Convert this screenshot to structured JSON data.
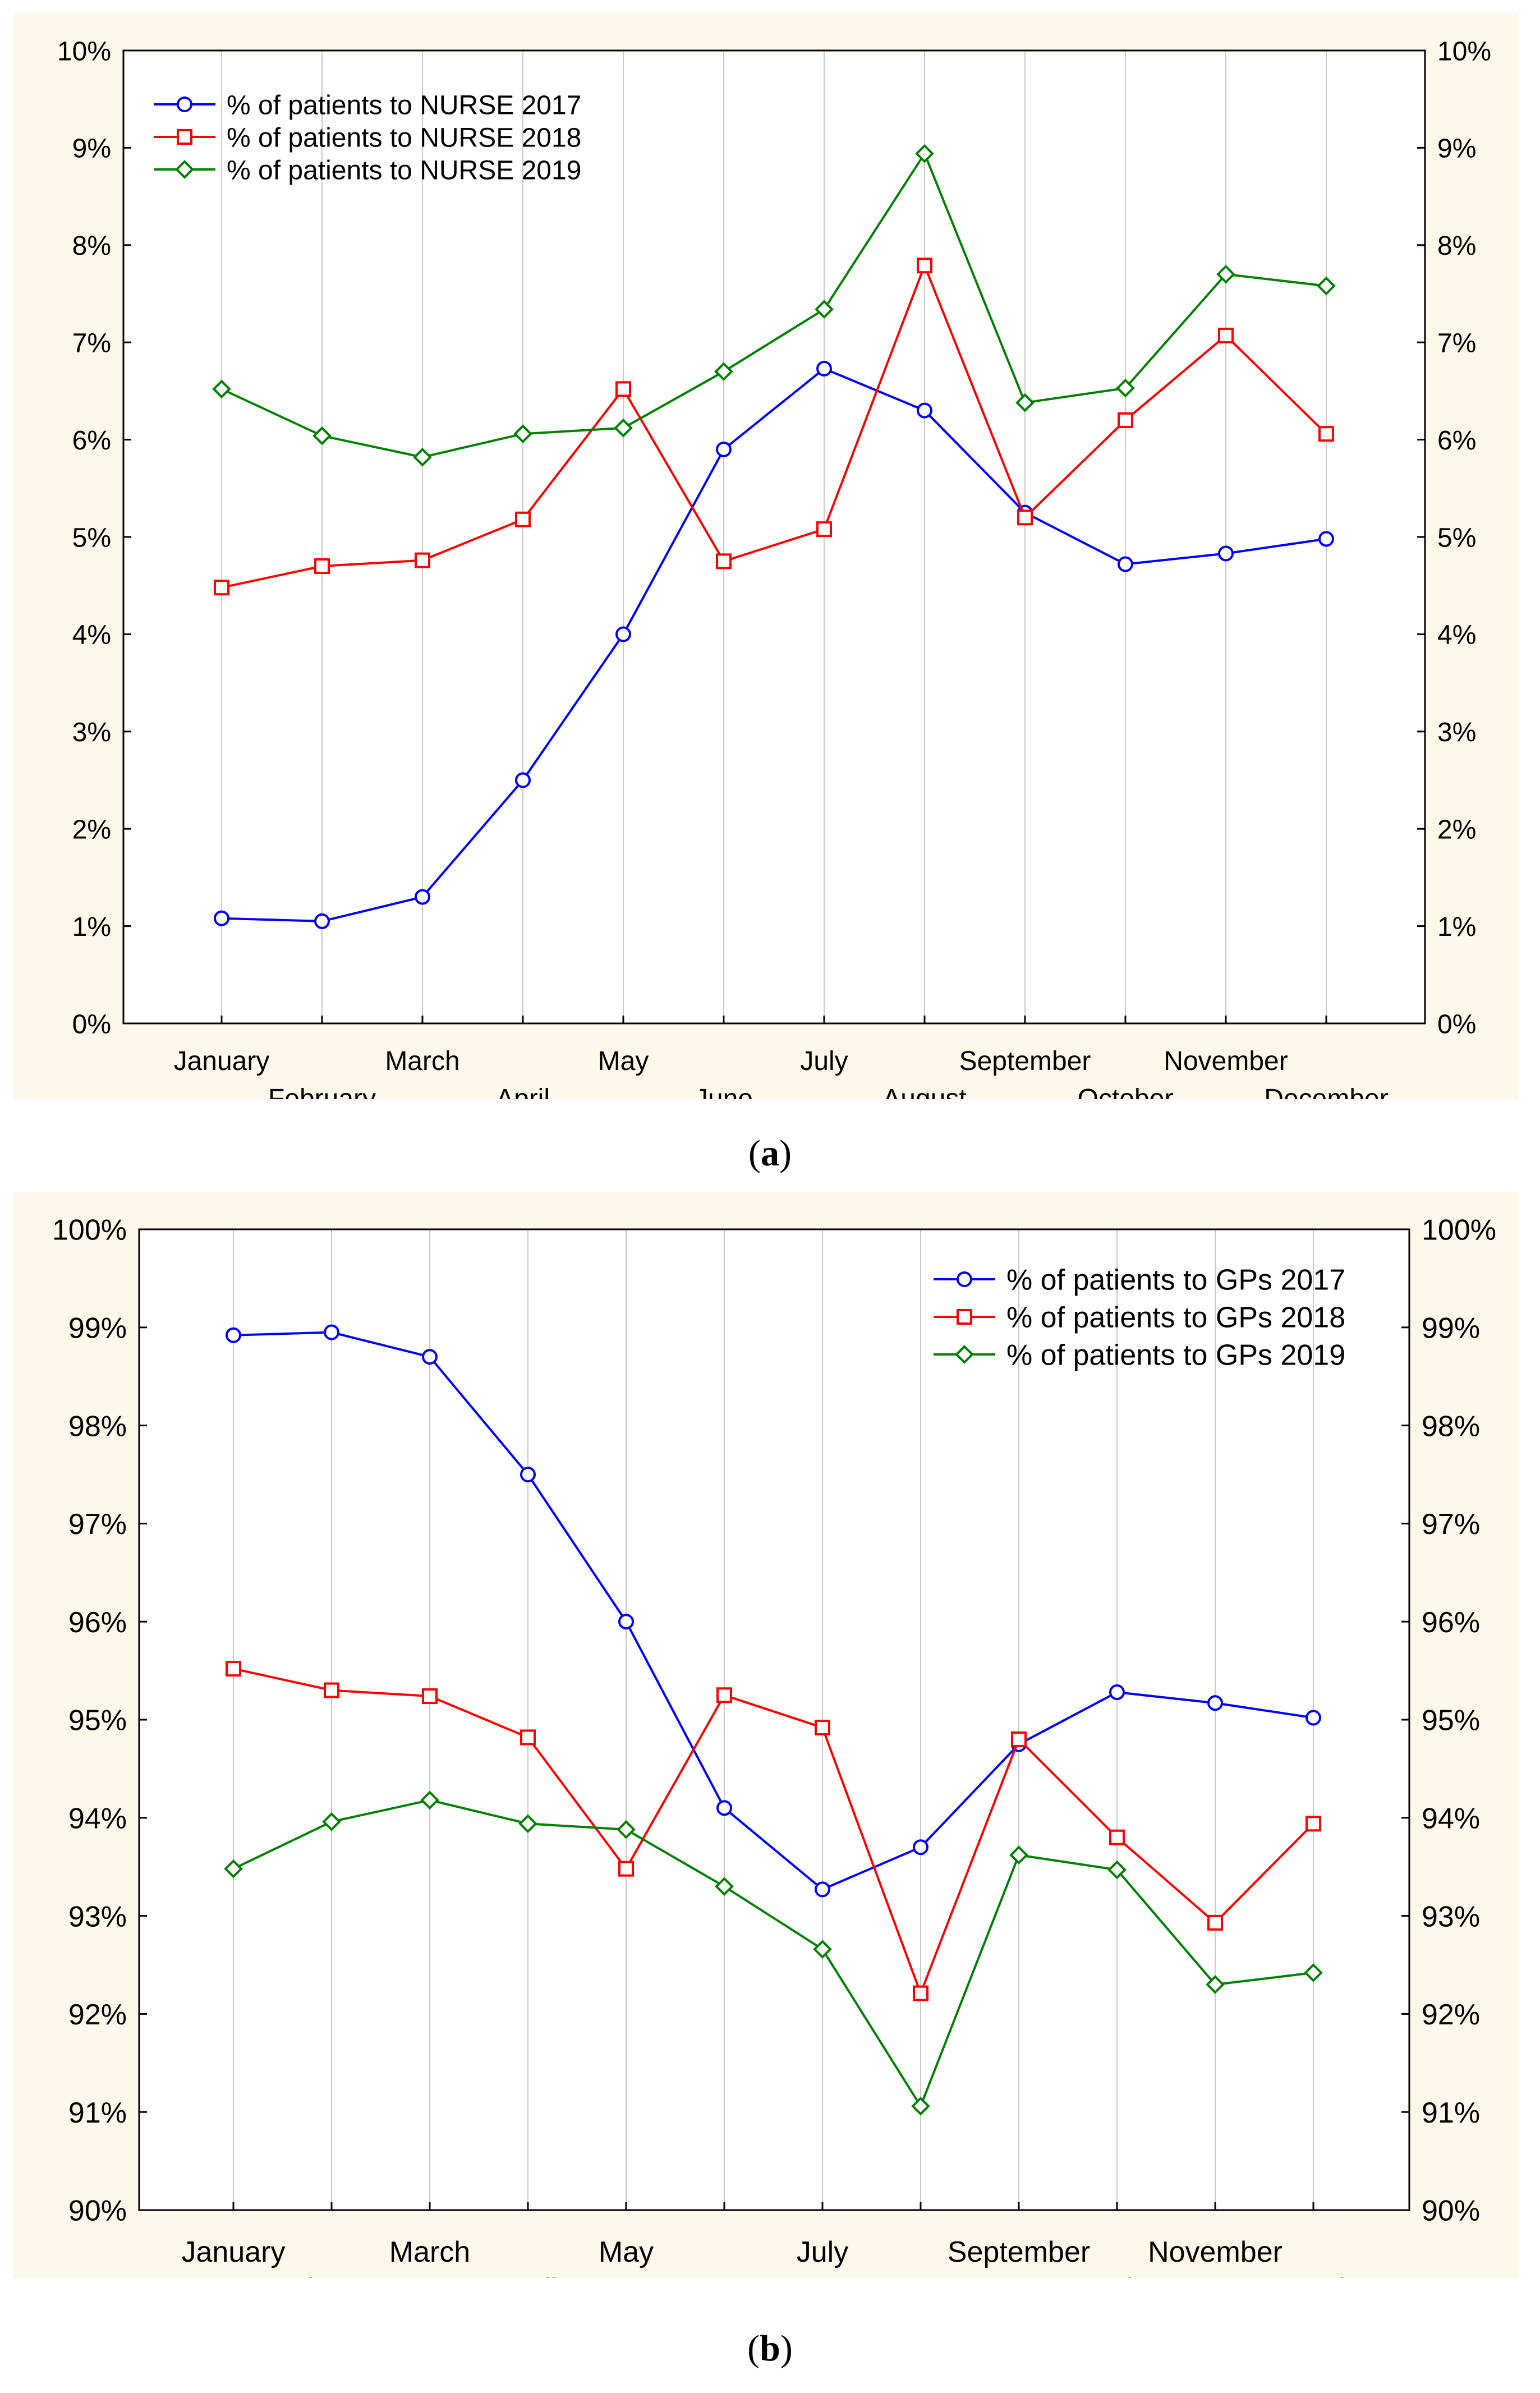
{
  "figure": {
    "panels": [
      {
        "caption_open": "(",
        "caption_letter": "a",
        "caption_close": ")"
      },
      {
        "caption_open": "(",
        "caption_letter": "b",
        "caption_close": ")"
      }
    ]
  },
  "chart_data": [
    {
      "type": "line",
      "title": "",
      "xlabel": "",
      "ylabel": "",
      "categories": [
        "January",
        "February",
        "March",
        "April",
        "May",
        "June",
        "July",
        "August",
        "September",
        "October",
        "November",
        "December"
      ],
      "ylim": [
        0,
        10
      ],
      "yticks": [
        "0%",
        "1%",
        "2%",
        "3%",
        "4%",
        "5%",
        "6%",
        "7%",
        "8%",
        "9%",
        "10%"
      ],
      "grid": true,
      "legend_position": "top-left",
      "series": [
        {
          "name": "% of patients to NURSE 2017",
          "color": "#0000ff",
          "marker": "circle",
          "values": [
            1.08,
            1.05,
            1.3,
            2.5,
            4.0,
            5.9,
            6.73,
            6.3,
            5.25,
            4.72,
            4.83,
            4.98
          ]
        },
        {
          "name": "% of patients to NURSE 2018",
          "color": "#ff0000",
          "marker": "square",
          "values": [
            4.48,
            4.7,
            4.76,
            5.18,
            6.52,
            4.75,
            5.08,
            7.79,
            5.2,
            6.2,
            7.07,
            6.06
          ]
        },
        {
          "name": "% of patients to NURSE 2019",
          "color": "#008000",
          "marker": "diamond",
          "values": [
            6.52,
            6.04,
            5.82,
            6.06,
            6.12,
            6.7,
            7.34,
            8.94,
            6.38,
            6.53,
            7.7,
            7.58
          ]
        }
      ]
    },
    {
      "type": "line",
      "title": "",
      "xlabel": "",
      "ylabel": "",
      "categories": [
        "January",
        "February",
        "March",
        "April",
        "May",
        "June",
        "July",
        "August",
        "September",
        "October",
        "November",
        "December"
      ],
      "ylim": [
        90,
        100
      ],
      "yticks": [
        "90%",
        "91%",
        "92%",
        "93%",
        "94%",
        "95%",
        "96%",
        "97%",
        "98%",
        "99%",
        "100%"
      ],
      "grid": true,
      "legend_position": "top-right",
      "series": [
        {
          "name": "% of patients to GPs 2017",
          "color": "#0000ff",
          "marker": "circle",
          "values": [
            98.92,
            98.95,
            98.7,
            97.5,
            96.0,
            94.1,
            93.27,
            93.7,
            94.75,
            95.28,
            95.17,
            95.02
          ]
        },
        {
          "name": "% of patients to GPs 2018",
          "color": "#ff0000",
          "marker": "square",
          "values": [
            95.52,
            95.3,
            95.24,
            94.82,
            93.48,
            95.25,
            94.92,
            92.21,
            94.8,
            93.8,
            92.93,
            93.94
          ]
        },
        {
          "name": "% of patients to GPs 2019",
          "color": "#008000",
          "marker": "diamond",
          "values": [
            93.48,
            93.96,
            94.18,
            93.94,
            93.88,
            93.3,
            92.66,
            91.06,
            93.62,
            93.47,
            92.3,
            92.42
          ]
        }
      ]
    }
  ]
}
